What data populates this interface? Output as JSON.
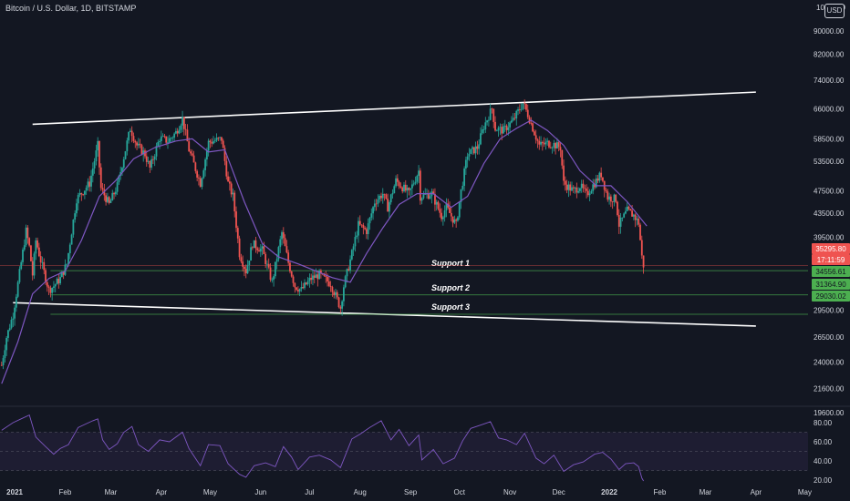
{
  "header": {
    "title": "Bitcoin / U.S. Dollar, 1D, BITSTAMP",
    "currency": "USD"
  },
  "colors": {
    "background": "#131722",
    "up": "#26a69a",
    "down": "#ef5350",
    "ma": "#7e57c2",
    "rsi": "#7e57c2",
    "channel": "#ffffff",
    "support": "#4caf50",
    "price_badge": "#ef5350",
    "support_badge": "#4caf50"
  },
  "chart_data": [
    {
      "type": "candlestick",
      "title": "Bitcoin / U.S. Dollar, 1D, BITSTAMP",
      "y_scale": "log",
      "y_ticks": [
        "90000.00",
        "82000.00",
        "74000.00",
        "66000.00",
        "58500.00",
        "53500.00",
        "47500.00",
        "43500.00",
        "39500.00",
        "29500.00",
        "26500.00",
        "24000.00",
        "21600.00",
        "19600.00"
      ],
      "y_ticks_values": [
        90000,
        82000,
        74000,
        66000,
        58500,
        53500,
        47500,
        43500,
        39500,
        29500,
        26500,
        24000,
        21600,
        19600
      ],
      "x_ticks": [
        "2021",
        "Feb",
        "Mar",
        "Apr",
        "May",
        "Jun",
        "Jul",
        "Aug",
        "Sep",
        "Oct",
        "Nov",
        "Dec",
        "2022",
        "Feb",
        "Mar",
        "Apr",
        "May"
      ],
      "x_ticks_bold": [
        "2021",
        "2022"
      ],
      "x_range": [
        "2020-12-23",
        "2022-05-03"
      ],
      "ylim": [
        18600,
        100000
      ],
      "close_path": [
        [
          "2020-12-24",
          23700
        ],
        [
          "2020-12-27",
          26500
        ],
        [
          "2020-12-31",
          29000
        ],
        [
          "2021-01-03",
          32800
        ],
        [
          "2021-01-08",
          40500
        ],
        [
          "2021-01-10",
          38000
        ],
        [
          "2021-01-12",
          34000
        ],
        [
          "2021-01-14",
          39000
        ],
        [
          "2021-01-17",
          36000
        ],
        [
          "2021-01-22",
          32000
        ],
        [
          "2021-01-25",
          32500
        ],
        [
          "2021-01-29",
          33500
        ],
        [
          "2021-02-02",
          35500
        ],
        [
          "2021-02-08",
          46000
        ],
        [
          "2021-02-12",
          47500
        ],
        [
          "2021-02-16",
          49000
        ],
        [
          "2021-02-21",
          57000
        ],
        [
          "2021-02-23",
          48000
        ],
        [
          "2021-02-28",
          45000
        ],
        [
          "2021-03-05",
          48500
        ],
        [
          "2021-03-10",
          56000
        ],
        [
          "2021-03-13",
          61000
        ],
        [
          "2021-03-17",
          57000
        ],
        [
          "2021-03-22",
          55000
        ],
        [
          "2021-03-25",
          52000
        ],
        [
          "2021-03-31",
          58700
        ],
        [
          "2021-04-05",
          58000
        ],
        [
          "2021-04-10",
          60000
        ],
        [
          "2021-04-14",
          63500
        ],
        [
          "2021-04-18",
          56000
        ],
        [
          "2021-04-25",
          49000
        ],
        [
          "2021-04-30",
          57700
        ],
        [
          "2021-05-08",
          58500
        ],
        [
          "2021-05-12",
          49000
        ],
        [
          "2021-05-15",
          46500
        ],
        [
          "2021-05-19",
          37000
        ],
        [
          "2021-05-23",
          34500
        ],
        [
          "2021-05-27",
          38500
        ],
        [
          "2021-06-02",
          37500
        ],
        [
          "2021-06-08",
          33000
        ],
        [
          "2021-06-14",
          40200
        ],
        [
          "2021-06-18",
          35700
        ],
        [
          "2021-06-22",
          32500
        ],
        [
          "2021-06-26",
          32000
        ],
        [
          "2021-07-02",
          33500
        ],
        [
          "2021-07-07",
          34000
        ],
        [
          "2021-07-14",
          32800
        ],
        [
          "2021-07-20",
          29800
        ],
        [
          "2021-07-22",
          32500
        ],
        [
          "2021-07-27",
          37000
        ],
        [
          "2021-07-31",
          41500
        ],
        [
          "2021-08-05",
          40500
        ],
        [
          "2021-08-10",
          45500
        ],
        [
          "2021-08-15",
          47000
        ],
        [
          "2021-08-18",
          44500
        ],
        [
          "2021-08-23",
          49500
        ],
        [
          "2021-08-31",
          47000
        ],
        [
          "2021-09-06",
          51500
        ],
        [
          "2021-09-07",
          46500
        ],
        [
          "2021-09-14",
          47000
        ],
        [
          "2021-09-20",
          43000
        ],
        [
          "2021-09-23",
          44500
        ],
        [
          "2021-09-29",
          41500
        ],
        [
          "2021-10-02",
          47500
        ],
        [
          "2021-10-06",
          55000
        ],
        [
          "2021-10-12",
          56500
        ],
        [
          "2021-10-16",
          61500
        ],
        [
          "2021-10-21",
          66000
        ],
        [
          "2021-10-23",
          61000
        ],
        [
          "2021-10-28",
          60500
        ],
        [
          "2021-11-03",
          63000
        ],
        [
          "2021-11-09",
          67500
        ],
        [
          "2021-11-12",
          64500
        ],
        [
          "2021-11-16",
          60000
        ],
        [
          "2021-11-19",
          57000
        ],
        [
          "2021-11-24",
          57500
        ],
        [
          "2021-11-28",
          57200
        ],
        [
          "2021-12-02",
          56500
        ],
        [
          "2021-12-04",
          49000
        ],
        [
          "2021-12-10",
          47500
        ],
        [
          "2021-12-14",
          48500
        ],
        [
          "2021-12-18",
          46800
        ],
        [
          "2021-12-22",
          48600
        ],
        [
          "2021-12-27",
          50800
        ],
        [
          "2021-12-31",
          46300
        ],
        [
          "2022-01-05",
          46000
        ],
        [
          "2022-01-07",
          41500
        ],
        [
          "2022-01-12",
          43900
        ],
        [
          "2022-01-16",
          43100
        ],
        [
          "2022-01-19",
          41800
        ],
        [
          "2022-01-21",
          36500
        ],
        [
          "2022-01-22",
          35300
        ]
      ],
      "moving_average": [
        [
          "2020-12-24",
          22000
        ],
        [
          "2021-01-03",
          26000
        ],
        [
          "2021-01-12",
          31500
        ],
        [
          "2021-01-22",
          33500
        ],
        [
          "2021-02-01",
          34500
        ],
        [
          "2021-02-11",
          39000
        ],
        [
          "2021-02-22",
          46500
        ],
        [
          "2021-03-04",
          49500
        ],
        [
          "2021-03-15",
          54000
        ],
        [
          "2021-03-28",
          56500
        ],
        [
          "2021-04-10",
          58000
        ],
        [
          "2021-04-20",
          58500
        ],
        [
          "2021-04-30",
          55500
        ],
        [
          "2021-05-10",
          56000
        ],
        [
          "2021-05-22",
          45500
        ],
        [
          "2021-06-02",
          38500
        ],
        [
          "2021-06-12",
          36500
        ],
        [
          "2021-06-24",
          35500
        ],
        [
          "2021-07-05",
          34500
        ],
        [
          "2021-07-15",
          33600
        ],
        [
          "2021-07-26",
          33000
        ],
        [
          "2021-08-05",
          37000
        ],
        [
          "2021-08-15",
          41000
        ],
        [
          "2021-08-25",
          45000
        ],
        [
          "2021-09-05",
          47000
        ],
        [
          "2021-09-15",
          47000
        ],
        [
          "2021-09-26",
          44500
        ],
        [
          "2021-10-06",
          46500
        ],
        [
          "2021-10-16",
          53000
        ],
        [
          "2021-10-26",
          58500
        ],
        [
          "2021-11-05",
          61000
        ],
        [
          "2021-11-14",
          63000
        ],
        [
          "2021-11-24",
          60500
        ],
        [
          "2021-12-04",
          57000
        ],
        [
          "2021-12-14",
          51500
        ],
        [
          "2021-12-24",
          48500
        ],
        [
          "2022-01-02",
          48500
        ],
        [
          "2022-01-12",
          45500
        ],
        [
          "2022-01-24",
          41300
        ]
      ],
      "channel_lines": [
        {
          "name": "upper",
          "from": [
            "2021-01-12",
            62000
          ],
          "to": [
            "2022-04-01",
            70500
          ]
        },
        {
          "name": "lower",
          "from": [
            "2020-12-31",
            30400
          ],
          "to": [
            "2022-04-01",
            27700
          ]
        }
      ],
      "support_lines": [
        {
          "label": "Support 1",
          "value": 34556.61,
          "from": "2021-01-23"
        },
        {
          "label": "Support 2",
          "value": 31364.9,
          "from": "2021-01-23"
        },
        {
          "label": "Support 3",
          "value": 29030.02,
          "from": "2021-01-23"
        }
      ],
      "last_price": {
        "value": "35295.80",
        "countdown": "17:11:59"
      },
      "price_badges": [
        "34556.61",
        "31364.90",
        "29030.02"
      ]
    },
    {
      "type": "line",
      "title": "",
      "y_ticks": [
        "80.00",
        "60.00",
        "40.00",
        "20.00"
      ],
      "y_ticks_values": [
        80,
        60,
        40,
        20
      ],
      "bands": [
        70,
        50,
        30
      ],
      "ylim": [
        16,
        92
      ],
      "rsi": [
        [
          "2020-12-24",
          72
        ],
        [
          "2020-12-31",
          80
        ],
        [
          "2021-01-05",
          84
        ],
        [
          "2021-01-10",
          88
        ],
        [
          "2021-01-14",
          65
        ],
        [
          "2021-01-20",
          55
        ],
        [
          "2021-01-25",
          47
        ],
        [
          "2021-01-29",
          53
        ],
        [
          "2021-02-03",
          57
        ],
        [
          "2021-02-09",
          75
        ],
        [
          "2021-02-14",
          79
        ],
        [
          "2021-02-18",
          82
        ],
        [
          "2021-02-21",
          84
        ],
        [
          "2021-02-24",
          62
        ],
        [
          "2021-02-28",
          52
        ],
        [
          "2021-03-05",
          58
        ],
        [
          "2021-03-09",
          70
        ],
        [
          "2021-03-14",
          76
        ],
        [
          "2021-03-18",
          57
        ],
        [
          "2021-03-24",
          50
        ],
        [
          "2021-03-31",
          62
        ],
        [
          "2021-04-06",
          60
        ],
        [
          "2021-04-14",
          70
        ],
        [
          "2021-04-18",
          53
        ],
        [
          "2021-04-25",
          35
        ],
        [
          "2021-04-30",
          57
        ],
        [
          "2021-05-07",
          56
        ],
        [
          "2021-05-12",
          37
        ],
        [
          "2021-05-19",
          26
        ],
        [
          "2021-05-23",
          23
        ],
        [
          "2021-05-28",
          35
        ],
        [
          "2021-06-04",
          38
        ],
        [
          "2021-06-10",
          34
        ],
        [
          "2021-06-15",
          55
        ],
        [
          "2021-06-20",
          44
        ],
        [
          "2021-06-24",
          31
        ],
        [
          "2021-07-01",
          44
        ],
        [
          "2021-07-07",
          46
        ],
        [
          "2021-07-14",
          41
        ],
        [
          "2021-07-20",
          33
        ],
        [
          "2021-07-27",
          63
        ],
        [
          "2021-08-01",
          68
        ],
        [
          "2021-08-07",
          75
        ],
        [
          "2021-08-14",
          82
        ],
        [
          "2021-08-20",
          62
        ],
        [
          "2021-08-25",
          73
        ],
        [
          "2021-08-31",
          56
        ],
        [
          "2021-09-06",
          67
        ],
        [
          "2021-09-08",
          41
        ],
        [
          "2021-09-15",
          52
        ],
        [
          "2021-09-21",
          37
        ],
        [
          "2021-09-28",
          43
        ],
        [
          "2021-10-03",
          61
        ],
        [
          "2021-10-08",
          74
        ],
        [
          "2021-10-15",
          78
        ],
        [
          "2021-10-20",
          81
        ],
        [
          "2021-10-25",
          64
        ],
        [
          "2021-10-30",
          62
        ],
        [
          "2021-11-05",
          57
        ],
        [
          "2021-11-10",
          69
        ],
        [
          "2021-11-17",
          43
        ],
        [
          "2021-11-22",
          37
        ],
        [
          "2021-11-28",
          46
        ],
        [
          "2021-12-04",
          29
        ],
        [
          "2021-12-10",
          36
        ],
        [
          "2021-12-16",
          39
        ],
        [
          "2021-12-23",
          47
        ],
        [
          "2021-12-28",
          49
        ],
        [
          "2022-01-02",
          42
        ],
        [
          "2022-01-07",
          31
        ],
        [
          "2022-01-11",
          37
        ],
        [
          "2022-01-16",
          38
        ],
        [
          "2022-01-19",
          34
        ],
        [
          "2022-01-21",
          22
        ],
        [
          "2022-01-22",
          19
        ]
      ]
    }
  ]
}
